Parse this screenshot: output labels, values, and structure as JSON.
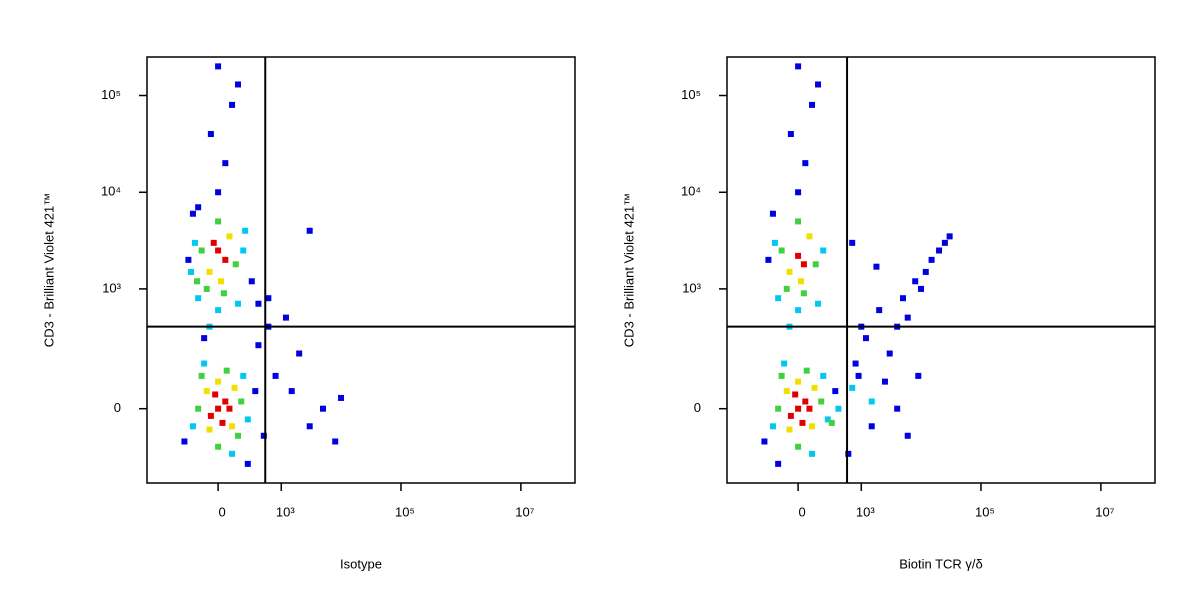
{
  "chart_data": [
    {
      "type": "scatter",
      "xscale": "biexponential",
      "yscale": "biexponential",
      "xlabel": "Isotype",
      "ylabel": "CD3 - Brilliant Violet 421™",
      "xlim": [
        -1360,
        80000000
      ],
      "ylim": [
        -330,
        250000
      ],
      "xticks": [
        0,
        {
          "value": 1000,
          "label": "10³"
        },
        {
          "value": 100000,
          "label": "10⁵"
        },
        {
          "value": 10000000,
          "label": "10⁷"
        }
      ],
      "yticks": [
        0,
        {
          "value": 1000,
          "label": "10³"
        },
        {
          "value": 10000,
          "label": "10⁴"
        },
        {
          "value": 100000,
          "label": "10⁵"
        }
      ],
      "gates": {
        "x": 530,
        "y": 400
      },
      "series": [
        {
          "color": "#0000e0",
          "x": [
            -300,
            350,
            500,
            800,
            1500,
            3000,
            5000,
            8000,
            10000,
            2000,
            600,
            1200,
            400,
            300,
            600,
            -250,
            -200,
            0,
            50,
            -50,
            100,
            0,
            150,
            3000,
            400,
            -100,
            -150,
            250
          ],
          "y": [
            -100,
            50,
            -80,
            100,
            50,
            -50,
            0,
            -100,
            30,
            200,
            400,
            500,
            700,
            1200,
            800,
            2000,
            6000,
            10000,
            20000,
            40000,
            80000,
            200000,
            130000,
            4000,
            250,
            300,
            7000,
            -200
          ]
        },
        {
          "color": "#00c8f0",
          "x": [
            -200,
            250,
            100,
            -100,
            200,
            -180,
            200,
            -150,
            150,
            0,
            -60,
            220,
            -220
          ],
          "y": [
            -50,
            -30,
            -150,
            150,
            100,
            3000,
            2500,
            800,
            700,
            600,
            400,
            4000,
            1500
          ]
        },
        {
          "color": "#40d040",
          "x": [
            -150,
            180,
            0,
            60,
            -120,
            -120,
            130,
            0,
            40,
            -80,
            150,
            -160
          ],
          "y": [
            0,
            20,
            -120,
            120,
            100,
            2500,
            1800,
            5000,
            900,
            1000,
            -80,
            1200
          ]
        },
        {
          "color": "#f0e000",
          "x": [
            -80,
            100,
            0,
            -60,
            120,
            -60,
            80,
            20
          ],
          "y": [
            50,
            -50,
            80,
            -60,
            60,
            1500,
            3500,
            1200
          ]
        },
        {
          "color": "#e00000",
          "x": [
            0,
            50,
            -50,
            30,
            -20,
            80,
            0,
            50,
            -30
          ],
          "y": [
            0,
            20,
            -20,
            -40,
            40,
            0,
            2500,
            2000,
            3000
          ]
        }
      ]
    },
    {
      "type": "scatter",
      "xscale": "biexponential",
      "yscale": "biexponential",
      "xlabel": "Biotin TCR γ/δ",
      "ylabel": "CD3 - Brilliant Violet 421™",
      "xlim": [
        -1360,
        80000000
      ],
      "ylim": [
        -330,
        250000
      ],
      "xticks": [
        0,
        {
          "value": 1000,
          "label": "10³"
        },
        {
          "value": 100000,
          "label": "10⁵"
        },
        {
          "value": 10000000,
          "label": "10⁷"
        }
      ],
      "yticks": [
        0,
        {
          "value": 1000,
          "label": "10³"
        },
        {
          "value": 10000,
          "label": "10⁴"
        },
        {
          "value": 100000,
          "label": "10⁵"
        }
      ],
      "gates": {
        "x": 570,
        "y": 400
      },
      "series": [
        {
          "color": "#0000e0",
          "x": [
            -300,
            350,
            600,
            900,
            1500,
            2500,
            4000,
            6000,
            3000,
            1200,
            800,
            2000,
            5000,
            8000,
            12000,
            15000,
            20000,
            25000,
            30000,
            10000,
            6000,
            4000,
            1000,
            700,
            -250,
            -200,
            0,
            50,
            -50,
            100,
            0,
            150,
            1800,
            9000,
            -150
          ],
          "y": [
            -100,
            50,
            -150,
            100,
            -50,
            80,
            0,
            -80,
            200,
            300,
            150,
            600,
            800,
            1200,
            1500,
            2000,
            2500,
            3000,
            3500,
            1000,
            500,
            400,
            400,
            3000,
            2000,
            6000,
            10000,
            20000,
            40000,
            80000,
            200000,
            130000,
            1700,
            100,
            -200
          ]
        },
        {
          "color": "#00c8f0",
          "x": [
            -200,
            250,
            100,
            -100,
            200,
            -180,
            200,
            -150,
            150,
            0,
            -60,
            400,
            700,
            1500
          ],
          "y": [
            -50,
            -30,
            -150,
            150,
            100,
            3000,
            2500,
            800,
            700,
            600,
            400,
            0,
            60,
            20
          ]
        },
        {
          "color": "#40d040",
          "x": [
            -150,
            180,
            0,
            60,
            -120,
            -120,
            130,
            0,
            40,
            -80,
            300
          ],
          "y": [
            0,
            20,
            -120,
            120,
            100,
            2500,
            1800,
            5000,
            900,
            1000,
            -40
          ]
        },
        {
          "color": "#f0e000",
          "x": [
            -80,
            100,
            0,
            -60,
            120,
            -60,
            80,
            20
          ],
          "y": [
            50,
            -50,
            80,
            -60,
            60,
            1500,
            3500,
            1200
          ]
        },
        {
          "color": "#e00000",
          "x": [
            0,
            50,
            -50,
            30,
            -20,
            80,
            0,
            40
          ],
          "y": [
            0,
            20,
            -20,
            -40,
            40,
            0,
            2200,
            1800
          ]
        }
      ]
    }
  ]
}
